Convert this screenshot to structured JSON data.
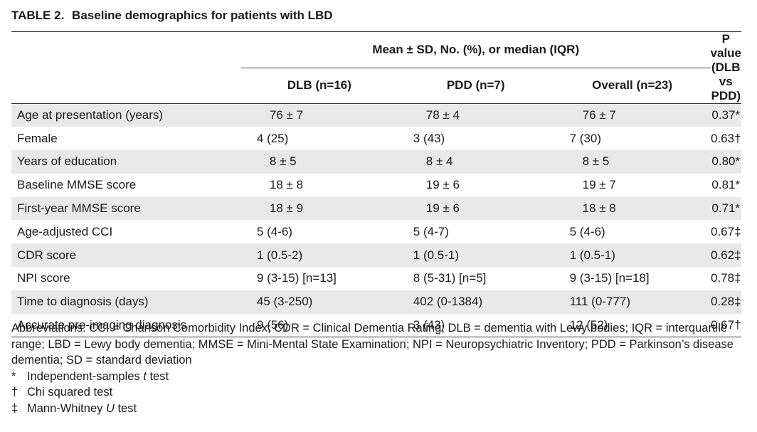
{
  "caption": {
    "label": "TABLE 2.",
    "title": "Baseline demographics for patients with LBD"
  },
  "header": {
    "group": "Mean ± SD, No. (%), or median (IQR)",
    "pvalue": "P value (DLB vs PDD)",
    "columns": [
      "DLB (n=16)",
      "PDD (n=7)",
      "Overall (n=23)"
    ]
  },
  "rows": [
    {
      "label": "Age at presentation (years)",
      "dlb": "76 ± 7",
      "pdd": "78 ± 4",
      "overall": "76 ± 7",
      "p": "0.37*",
      "align": "num"
    },
    {
      "label": "Female",
      "dlb": "4 (25)",
      "pdd": "3 (43)",
      "overall": "7 (30)",
      "p": "0.63†",
      "align": "txt"
    },
    {
      "label": "Years of education",
      "dlb": "8 ± 5",
      "pdd": "8 ± 4",
      "overall": "8 ± 5",
      "p": "0.80*",
      "align": "num"
    },
    {
      "label": "Baseline MMSE score",
      "dlb": "18 ± 8",
      "pdd": "19 ± 6",
      "overall": "19 ± 7",
      "p": "0.81*",
      "align": "num"
    },
    {
      "label": "First-year MMSE score",
      "dlb": "18 ± 9",
      "pdd": "19 ± 6",
      "overall": "18 ± 8",
      "p": "0.71*",
      "align": "num"
    },
    {
      "label": "Age-adjusted CCI",
      "dlb": "5 (4-6)",
      "pdd": "5 (4-7)",
      "overall": "5 (4-6)",
      "p": "0.67‡",
      "align": "txt"
    },
    {
      "label": "CDR score",
      "dlb": "1 (0.5-2)",
      "pdd": "1 (0.5-1)",
      "overall": "1 (0.5-1)",
      "p": "0.62‡",
      "align": "txt"
    },
    {
      "label": "NPI score",
      "dlb": "9 (3-15) [n=13]",
      "pdd": "8 (5-31) [n=5]",
      "overall": "9 (3-15) [n=18]",
      "p": "0.78‡",
      "align": "txt"
    },
    {
      "label": "Time to diagnosis (days)",
      "dlb": "45 (3-250)",
      "pdd": "402 (0-1384)",
      "overall": "111 (0-777)",
      "p": "0.28‡",
      "align": "txt"
    },
    {
      "label": "Accurate pre-imaging diagnosis",
      "dlb": "9 (56)",
      "pdd": "3 (43)",
      "overall": "12 (52)",
      "p": "0.67†",
      "align": "txt"
    }
  ],
  "abbreviations": "Abbreviations: CCI = Charlson Comorbidity Index; CDR = Clinical Dementia Rating; DLB = dementia with Lewy bodies; IQR = interquartile range; LBD = Lewy body dementia; MMSE = Mini-Mental State Examination; NPI = Neuropsychiatric Inventory; PDD = Parkinson’s disease dementia; SD = standard deviation",
  "footnotes": [
    {
      "symbol": "*",
      "before": "Independent-samples ",
      "italic": "t",
      "after": " test"
    },
    {
      "symbol": "†",
      "before": "Chi squared test",
      "italic": "",
      "after": ""
    },
    {
      "symbol": "‡",
      "before": "Mann-Whitney ",
      "italic": "U",
      "after": " test"
    }
  ]
}
